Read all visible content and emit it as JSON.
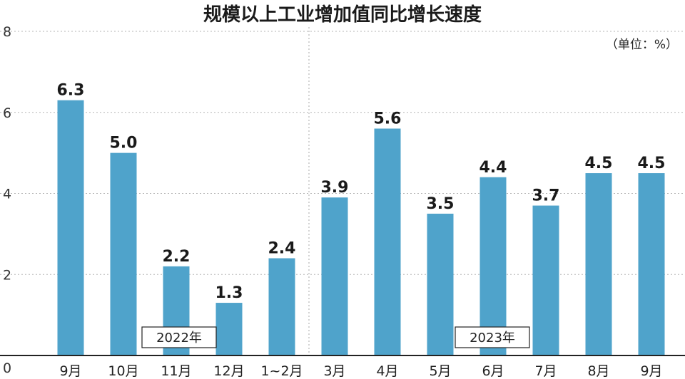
{
  "chart_data": {
    "type": "bar",
    "title": "规模以上工业增加值同比增长速度",
    "unit_label": "（单位：%）",
    "categories": [
      "9月",
      "10月",
      "11月",
      "12月",
      "1~2月",
      "3月",
      "4月",
      "5月",
      "6月",
      "7月",
      "8月",
      "9月"
    ],
    "values": [
      6.3,
      5.0,
      2.2,
      1.3,
      2.4,
      3.9,
      5.6,
      3.5,
      4.4,
      3.7,
      4.5,
      4.5
    ],
    "data_labels": [
      "6.3",
      "5.0",
      "2.2",
      "1.3",
      "2.4",
      "3.9",
      "5.6",
      "3.5",
      "4.4",
      "3.7",
      "4.5",
      "4.5"
    ],
    "yticks": [
      "0",
      "2",
      "4",
      "6",
      "8"
    ],
    "ylim": [
      0,
      8
    ],
    "grid": true,
    "bar_color": "#4fa3cb",
    "groups": [
      {
        "label": "2022年",
        "start": 0,
        "end": 4
      },
      {
        "label": "2023年",
        "start": 5,
        "end": 11
      }
    ]
  }
}
